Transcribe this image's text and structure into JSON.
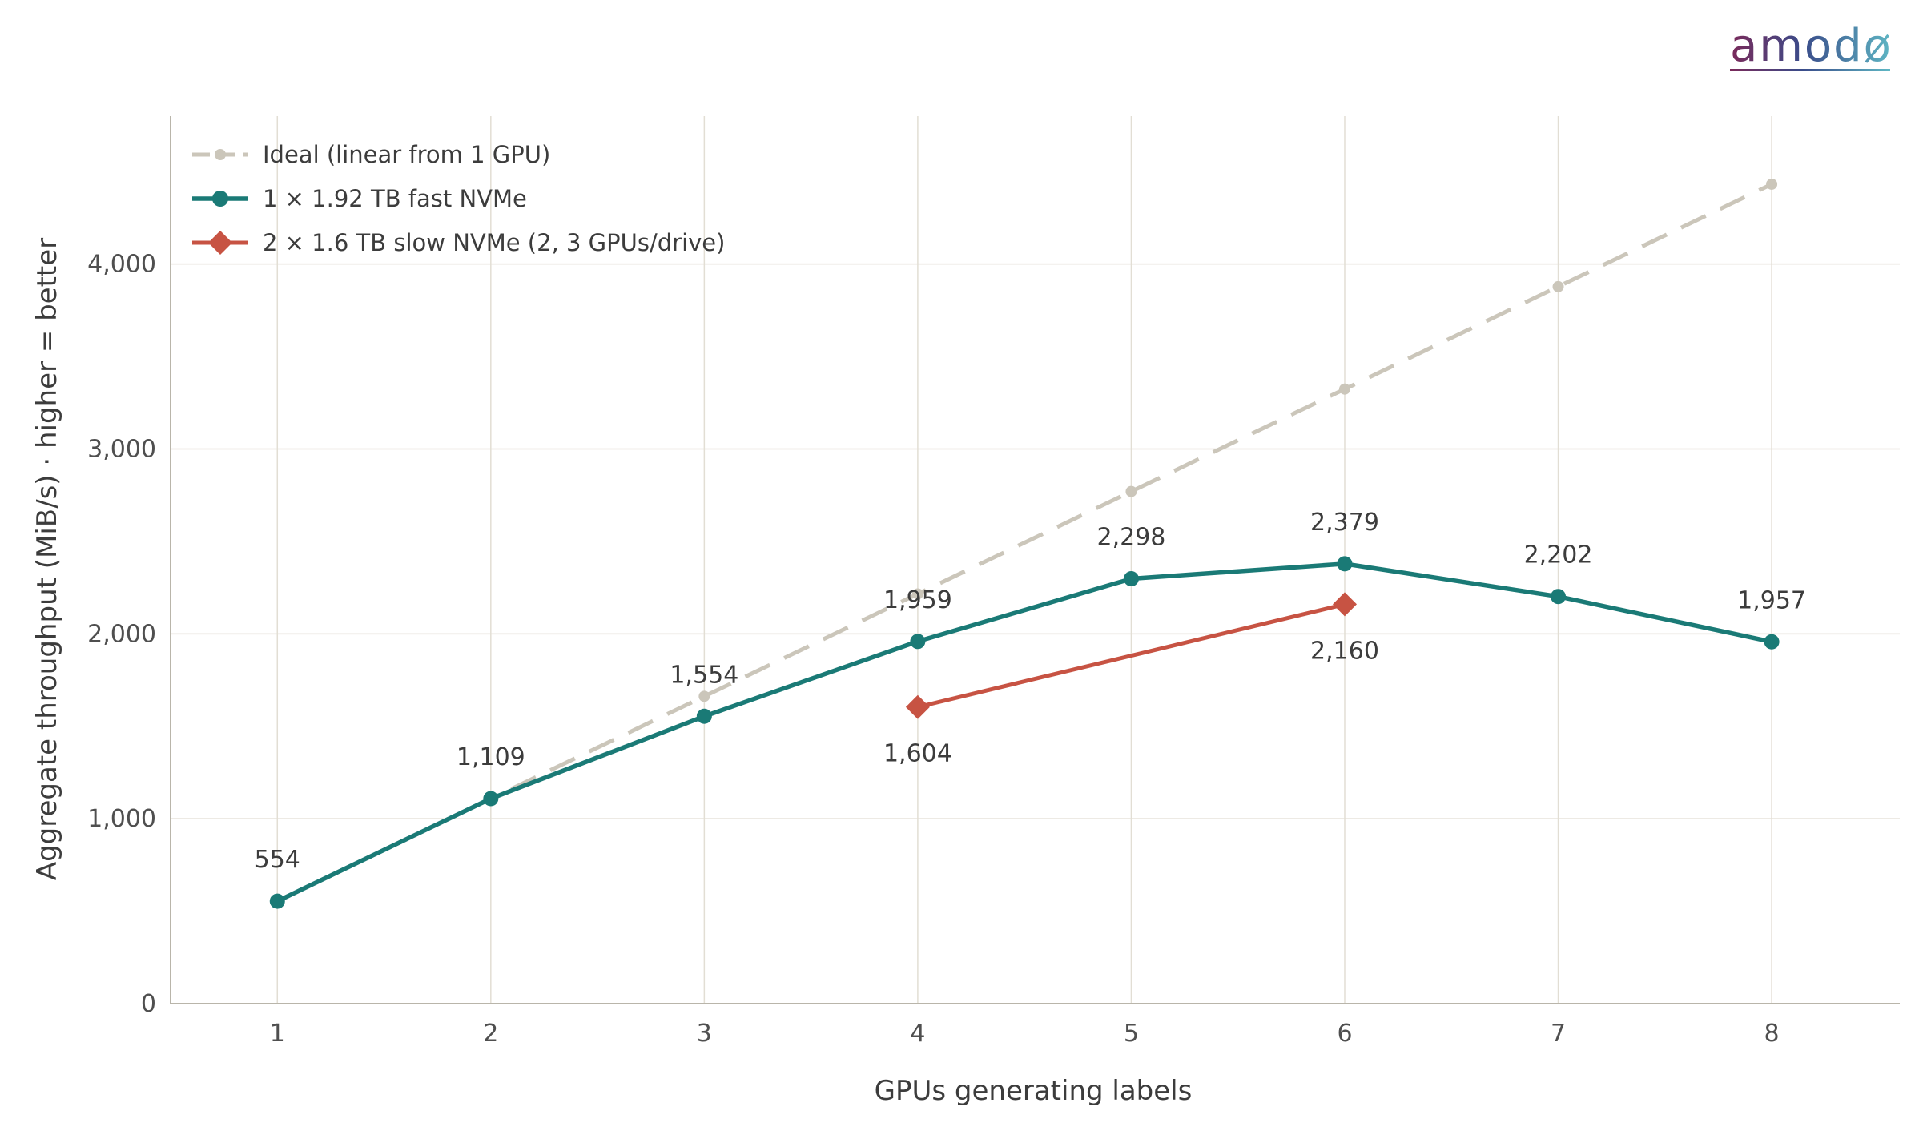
{
  "logo": {
    "text": "amodø"
  },
  "chart_data": {
    "type": "line",
    "xlabel": "GPUs generating labels",
    "ylabel": "Aggregate throughput (MiB/s)  ·  higher = better",
    "x": [
      1,
      2,
      3,
      4,
      5,
      6,
      7,
      8
    ],
    "xlim": [
      0.5,
      8.6
    ],
    "ylim": [
      0,
      4800
    ],
    "y_ticks": [
      0,
      1000,
      2000,
      3000,
      4000
    ],
    "y_tick_labels": [
      "0",
      "1,000",
      "2,000",
      "3,000",
      "4,000"
    ],
    "x_tick_labels": [
      "1",
      "2",
      "3",
      "4",
      "5",
      "6",
      "7",
      "8"
    ],
    "grid": true,
    "legend_position": "top-left",
    "series": [
      {
        "name": "Ideal (linear from 1 GPU)",
        "style": "dashed",
        "color": "#cbc6ba",
        "x": [
          1,
          2,
          3,
          4,
          5,
          6,
          7,
          8
        ],
        "values": [
          554,
          1108,
          1662,
          2216,
          2770,
          3324,
          3878,
          4432
        ]
      },
      {
        "name": "1 × 1.92 TB fast NVMe",
        "style": "solid",
        "marker": "circle",
        "color": "#1a7a76",
        "x": [
          1,
          2,
          3,
          4,
          5,
          6,
          7,
          8
        ],
        "values": [
          554,
          1109,
          1554,
          1959,
          2298,
          2379,
          2202,
          1957
        ],
        "labels": [
          "554",
          "1,109",
          "1,554",
          "1,959",
          "2,298",
          "2,379",
          "2,202",
          "1,957"
        ]
      },
      {
        "name": "2 × 1.6 TB slow NVMe (2, 3 GPUs/drive)",
        "style": "solid",
        "marker": "diamond",
        "color": "#c75343",
        "x": [
          4,
          6
        ],
        "values": [
          1604,
          2160
        ],
        "labels": [
          "1,604",
          "2,160"
        ]
      }
    ]
  }
}
